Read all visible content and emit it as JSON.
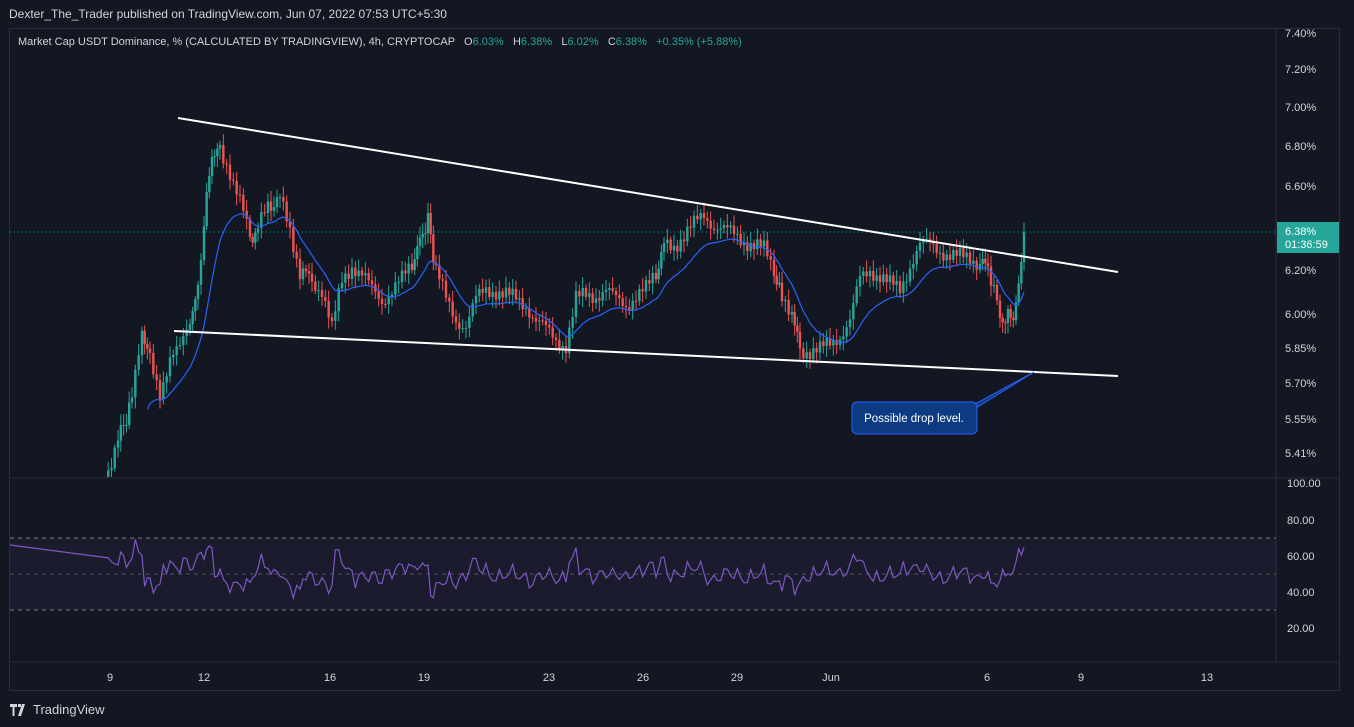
{
  "publisher": {
    "text": "Dexter_The_Trader published on TradingView.com, Jun 07, 2022 07:53 UTC+5:30"
  },
  "legend": {
    "symbol": "Market Cap USDT Dominance, % (CALCULATED BY TRADINGVIEW), 4h, CRYPTOCAP",
    "o_label": "O",
    "o_value": "6.03%",
    "h_label": "H",
    "h_value": "6.38%",
    "l_label": "L",
    "l_value": "6.02%",
    "c_label": "C",
    "c_value": "6.38%",
    "change": "+0.35% (+5.88%)"
  },
  "price_axis": {
    "ticks": [
      "7.40%",
      "7.20%",
      "7.00%",
      "6.80%",
      "6.60%",
      "6.20%",
      "6.00%",
      "5.85%",
      "5.70%",
      "5.55%",
      "5.41%"
    ],
    "current_price": "6.38%",
    "countdown": "01:36:59"
  },
  "rsi_axis": {
    "ticks": [
      "100.00",
      "80.00",
      "60.00",
      "40.00",
      "20.00"
    ]
  },
  "time_axis": {
    "ticks": [
      "9",
      "12",
      "16",
      "19",
      "23",
      "26",
      "29",
      "Jun",
      "6",
      "9",
      "13"
    ]
  },
  "annotation": {
    "text": "Possible drop level."
  },
  "footer": {
    "brand": "TradingView"
  },
  "colors": {
    "background": "#131722",
    "up": "#26a69a",
    "down": "#ef5350",
    "ma": "#2962ff",
    "rsi": "#7e57c2",
    "trendline": "#ffffff",
    "annotation_bg": "#0d3b82",
    "annotation_border": "#2962ff"
  },
  "icons": {
    "brand_logo": "tradingview-logo-icon"
  }
}
